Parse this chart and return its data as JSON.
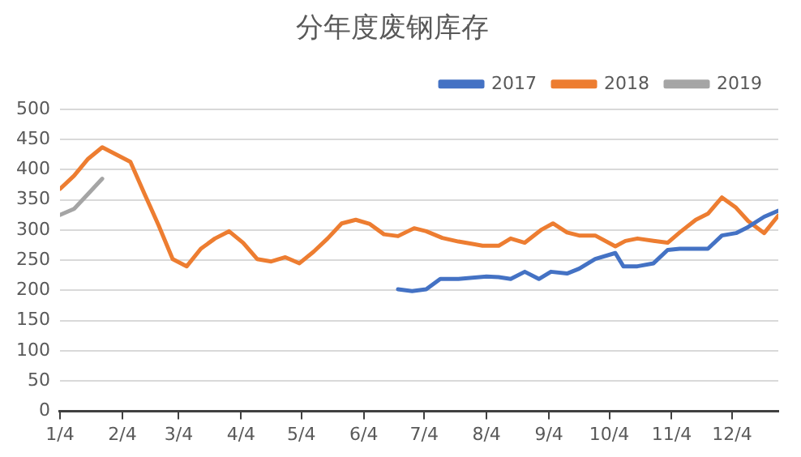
{
  "chart_data": {
    "type": "line",
    "title": "分年度废钢库存",
    "legend": "top",
    "grid": "y",
    "marker": "none",
    "line_style": "solid",
    "xlim": [
      "--01-04",
      "--12-27"
    ],
    "xticks": [
      {
        "value": "--01-04",
        "label": "1/4"
      },
      {
        "value": "--02-04",
        "label": "2/4"
      },
      {
        "value": "--03-04",
        "label": "3/4"
      },
      {
        "value": "--04-04",
        "label": "4/4"
      },
      {
        "value": "--05-04",
        "label": "5/4"
      },
      {
        "value": "--06-04",
        "label": "6/4"
      },
      {
        "value": "--07-04",
        "label": "7/4"
      },
      {
        "value": "--08-04",
        "label": "8/4"
      },
      {
        "value": "--09-04",
        "label": "9/4"
      },
      {
        "value": "--10-04",
        "label": "10/4"
      },
      {
        "value": "--11-04",
        "label": "11/4"
      },
      {
        "value": "--12-04",
        "label": "12/4"
      }
    ],
    "ylim": [
      0,
      500
    ],
    "yticks": [
      0,
      50,
      100,
      150,
      200,
      250,
      300,
      350,
      400,
      450,
      500
    ],
    "series": [
      {
        "name": "2017",
        "color": "#4472c4",
        "x": [
          "--06-21",
          "--06-28",
          "--07-05",
          "--07-12",
          "--07-21",
          "--07-28",
          "--08-04",
          "--08-10",
          "--08-16",
          "--08-23",
          "--08-30",
          "--09-05",
          "--09-13",
          "--09-19",
          "--09-27",
          "--10-07",
          "--10-11",
          "--10-18",
          "--10-26",
          "--11-02",
          "--11-08",
          "--11-22",
          "--11-29",
          "--12-06",
          "--12-12",
          "--12-20",
          "--12-27"
        ],
        "values": [
          202,
          199,
          202,
          219,
          219,
          221,
          223,
          222,
          219,
          231,
          219,
          231,
          228,
          236,
          252,
          262,
          240,
          240,
          245,
          267,
          269,
          269,
          291,
          295,
          305,
          322,
          332
        ]
      },
      {
        "name": "2018",
        "color": "#ed7d31",
        "x": [
          "--01-04",
          "--01-11",
          "--01-18",
          "--01-25",
          "--02-01",
          "--02-08",
          "--02-15",
          "--02-22",
          "--03-01",
          "--03-08",
          "--03-15",
          "--03-22",
          "--03-29",
          "--04-05",
          "--04-12",
          "--04-19",
          "--04-26",
          "--05-03",
          "--05-10",
          "--05-17",
          "--05-24",
          "--05-31",
          "--06-07",
          "--06-14",
          "--06-21",
          "--06-29",
          "--07-05",
          "--07-13",
          "--07-21",
          "--07-28",
          "--08-02",
          "--08-10",
          "--08-16",
          "--08-23",
          "--08-31",
          "--09-06",
          "--09-13",
          "--09-19",
          "--09-27",
          "--10-07",
          "--10-12",
          "--10-18",
          "--10-26",
          "--11-02",
          "--11-08",
          "--11-16",
          "--11-22",
          "--11-29",
          "--12-06",
          "--12-12",
          "--12-20",
          "--12-27"
        ],
        "values": [
          368,
          390,
          418,
          437,
          425,
          413,
          360,
          308,
          252,
          240,
          269,
          286,
          298,
          279,
          252,
          248,
          255,
          245,
          264,
          286,
          311,
          317,
          310,
          293,
          290,
          303,
          298,
          287,
          281,
          277,
          274,
          274,
          286,
          279,
          300,
          311,
          296,
          291,
          291,
          273,
          282,
          286,
          282,
          279,
          296,
          317,
          327,
          354,
          337,
          315,
          295,
          324
        ]
      },
      {
        "name": "2019",
        "color": "#a5a5a5",
        "x": [
          "--01-04",
          "--01-11",
          "--01-18",
          "--01-25"
        ],
        "values": [
          325,
          335,
          360,
          385
        ]
      }
    ]
  }
}
